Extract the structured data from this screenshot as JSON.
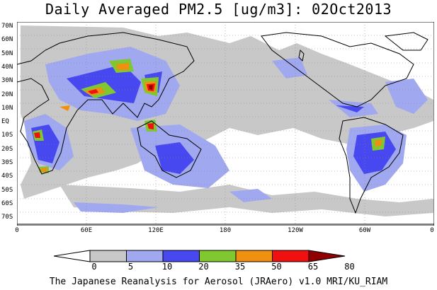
{
  "title": "Daily Averaged PM2.5 [ug/m3]: 02Oct2013",
  "footer": "The Japanese Reanalysis for Aerosol (JRAero) v1.0 MRI/KU_RIAM",
  "lat_labels": [
    "70N",
    "60N",
    "50N",
    "40N",
    "30N",
    "20N",
    "10N",
    "EQ",
    "10S",
    "20S",
    "30S",
    "40S",
    "50S",
    "60S",
    "70S"
  ],
  "lon_labels": [
    "0",
    "60E",
    "120E",
    "180",
    "120W",
    "60W",
    "0"
  ],
  "colorbar": {
    "labels": [
      "0",
      "5",
      "10",
      "20",
      "35",
      "50",
      "65",
      "80"
    ],
    "colors": [
      "#ffffff",
      "#c8c8c8",
      "#a0a8f0",
      "#4848f0",
      "#80c830",
      "#f09010",
      "#f01010",
      "#900000"
    ]
  },
  "legend_colors": {
    "map_5_10": "#c8c8c8",
    "map_10_20": "#a0a8f0",
    "map_20_35": "#4848f0",
    "map_35_50": "#80c830",
    "map_50_65": "#f09010",
    "map_65_80": "#f01010",
    "map_80_plus": "#900000"
  }
}
